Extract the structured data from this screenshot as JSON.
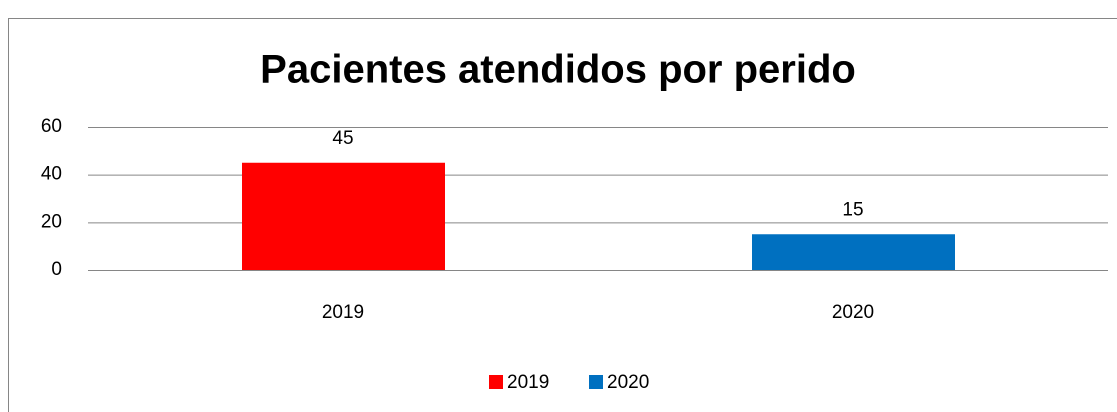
{
  "chart_data": {
    "type": "bar",
    "title": "Pacientes atendidos por perido",
    "categories": [
      "2019",
      "2020"
    ],
    "values": [
      45,
      15
    ],
    "colors": [
      "#ff0000",
      "#0070c0"
    ],
    "ylim": [
      0,
      60
    ],
    "yticks": [
      0,
      20,
      40,
      60
    ],
    "grid": true,
    "legend": "bottom"
  }
}
